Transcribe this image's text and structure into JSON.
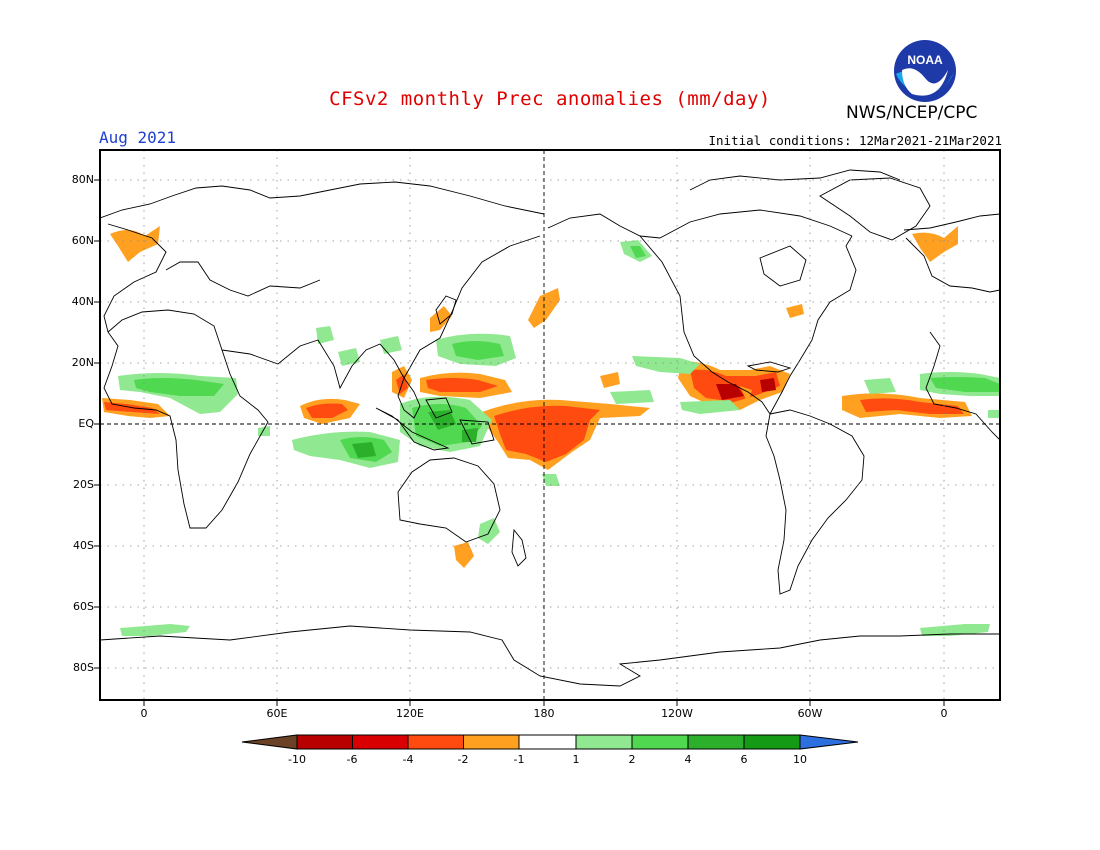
{
  "title": "CFSv2 monthly Prec anomalies (mm/day)",
  "month": "Aug 2021",
  "organization": "NWS/NCEP/CPC",
  "logo_text": "NOAA",
  "initial_conditions": "Initial conditions: 12Mar2021-21Mar2021",
  "axes": {
    "lat_labels": [
      "80N",
      "60N",
      "40N",
      "20N",
      "EQ",
      "20S",
      "40S",
      "60S",
      "80S"
    ],
    "lon_labels": [
      "0",
      "60E",
      "120E",
      "180",
      "120W",
      "60W",
      "0"
    ]
  },
  "colorbar": {
    "labels": [
      "-10",
      "-6",
      "-4",
      "-2",
      "-1",
      "1",
      "2",
      "4",
      "6",
      "10"
    ],
    "colors": [
      "#6b4226",
      "#b80000",
      "#d80000",
      "#ff4a10",
      "#ffa020",
      "#ffffff",
      "#90e890",
      "#50d850",
      "#2cb02c",
      "#149a14",
      "#2e6fe0"
    ]
  },
  "colors": {
    "title": "#e00000",
    "month": "#1f3fd0",
    "dry_moderate": "#ffa020",
    "dry_strong": "#ff4a10",
    "wet_light": "#90e890",
    "wet_moderate": "#50d850",
    "wet_strong": "#2cb02c"
  }
}
